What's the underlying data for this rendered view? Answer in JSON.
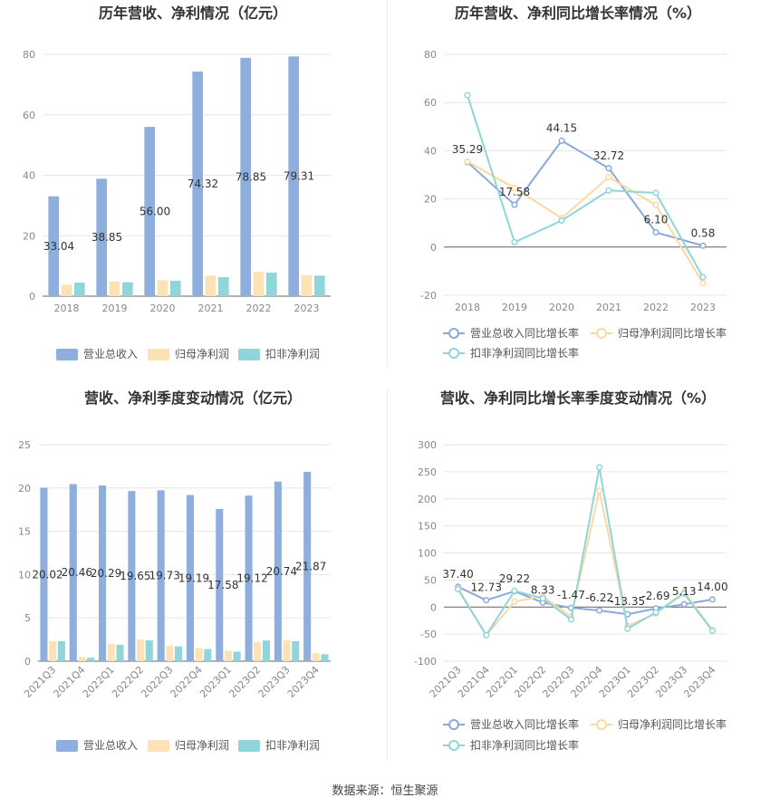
{
  "footer": "数据来源：恒生聚源",
  "colors": {
    "revenue": "#8eaedd",
    "netprofit": "#fde2b5",
    "deducted": "#8fd5da",
    "revenue_line": "#8aa9d8",
    "netprofit_line": "#fbd9a0",
    "deducted_line": "#8fd5da",
    "grid": "#e6e6e6",
    "axis_text": "#888888",
    "label_text": "#333333"
  },
  "chart_data": [
    {
      "type": "bar",
      "title": "历年营收、净利情况（亿元）",
      "categories": [
        "2018",
        "2019",
        "2020",
        "2021",
        "2022",
        "2023"
      ],
      "ylim": [
        0,
        80
      ],
      "yticks": [
        0,
        20,
        40,
        60,
        80
      ],
      "series": [
        {
          "name": "营业总收入",
          "values": [
            33.04,
            38.85,
            56.0,
            74.32,
            78.85,
            79.31
          ],
          "labels": [
            "33.04",
            "38.85",
            "56.00",
            "74.32",
            "78.85",
            "79.31"
          ]
        },
        {
          "name": "归母净利润",
          "values": [
            3.8,
            4.8,
            5.3,
            6.8,
            8.1,
            6.9
          ]
        },
        {
          "name": "扣非净利润",
          "values": [
            4.5,
            4.6,
            5.1,
            6.3,
            7.8,
            6.8
          ]
        }
      ],
      "legend": "bottom"
    },
    {
      "type": "line",
      "title": "历年营收、净利同比增长率情况（%）",
      "categories": [
        "2018",
        "2019",
        "2020",
        "2021",
        "2022",
        "2023"
      ],
      "ylim": [
        -20,
        80
      ],
      "yticks": [
        -20,
        0,
        20,
        40,
        60,
        80
      ],
      "series": [
        {
          "name": "营业总收入同比增长率",
          "values": [
            35.29,
            17.58,
            44.15,
            32.72,
            6.1,
            0.58
          ],
          "labels": [
            "35.29",
            "17.58",
            "44.15",
            "32.72",
            "6.10",
            "0.58"
          ]
        },
        {
          "name": "归母净利润同比增长率",
          "values": [
            35.5,
            24.5,
            12.0,
            29.0,
            17.5,
            -15.0
          ]
        },
        {
          "name": "扣非净利润同比增长率",
          "values": [
            63.0,
            2.0,
            11.0,
            23.5,
            22.5,
            -12.5
          ]
        }
      ],
      "legend": "bottom"
    },
    {
      "type": "bar",
      "title": "营收、净利季度变动情况（亿元）",
      "categories": [
        "2021Q3",
        "2021Q4",
        "2022Q1",
        "2022Q2",
        "2022Q3",
        "2022Q4",
        "2023Q1",
        "2023Q2",
        "2023Q3",
        "2023Q4"
      ],
      "ylim": [
        0,
        25
      ],
      "yticks": [
        0,
        5,
        10,
        15,
        20,
        25
      ],
      "series": [
        {
          "name": "营业总收入",
          "values": [
            20.02,
            20.46,
            20.29,
            19.65,
            19.73,
            19.19,
            17.58,
            19.12,
            20.74,
            21.87
          ],
          "labels": [
            "20.02",
            "20.46",
            "20.29",
            "19.65",
            "19.73",
            "19.19",
            "17.58",
            "19.12",
            "20.74",
            "21.87"
          ]
        },
        {
          "name": "归母净利润",
          "values": [
            2.3,
            0.5,
            2.0,
            2.5,
            1.8,
            1.5,
            1.2,
            2.2,
            2.4,
            0.9
          ]
        },
        {
          "name": "扣非净利润",
          "values": [
            2.3,
            0.4,
            1.9,
            2.4,
            1.7,
            1.4,
            1.1,
            2.4,
            2.3,
            0.8
          ]
        }
      ],
      "legend": "bottom"
    },
    {
      "type": "line",
      "title": "营收、净利同比增长率季度变动情况（%）",
      "categories": [
        "2021Q3",
        "2021Q4",
        "2022Q1",
        "2022Q2",
        "2022Q3",
        "2022Q4",
        "2023Q1",
        "2023Q2",
        "2023Q3",
        "2023Q4"
      ],
      "ylim": [
        -100,
        300
      ],
      "yticks": [
        -100,
        -50,
        0,
        50,
        100,
        150,
        200,
        250,
        300
      ],
      "series": [
        {
          "name": "营业总收入同比增长率",
          "values": [
            37.4,
            12.73,
            29.22,
            8.33,
            -1.47,
            -6.22,
            -13.35,
            -2.69,
            5.13,
            14.0
          ],
          "labels": [
            "37.40",
            "12.73",
            "29.22",
            "8.33",
            "-1.47",
            "-6.22",
            "-13.35",
            "-2.69",
            "5.13",
            "14.00"
          ]
        },
        {
          "name": "归母净利润同比增长率",
          "values": [
            35,
            -52,
            10,
            20,
            -18,
            215,
            -35,
            -12,
            28,
            -42
          ]
        },
        {
          "name": "扣非净利润同比增长率",
          "values": [
            33,
            -52,
            30,
            16,
            -23,
            258,
            -40,
            -10,
            25,
            -44
          ]
        }
      ],
      "legend": "bottom"
    }
  ]
}
